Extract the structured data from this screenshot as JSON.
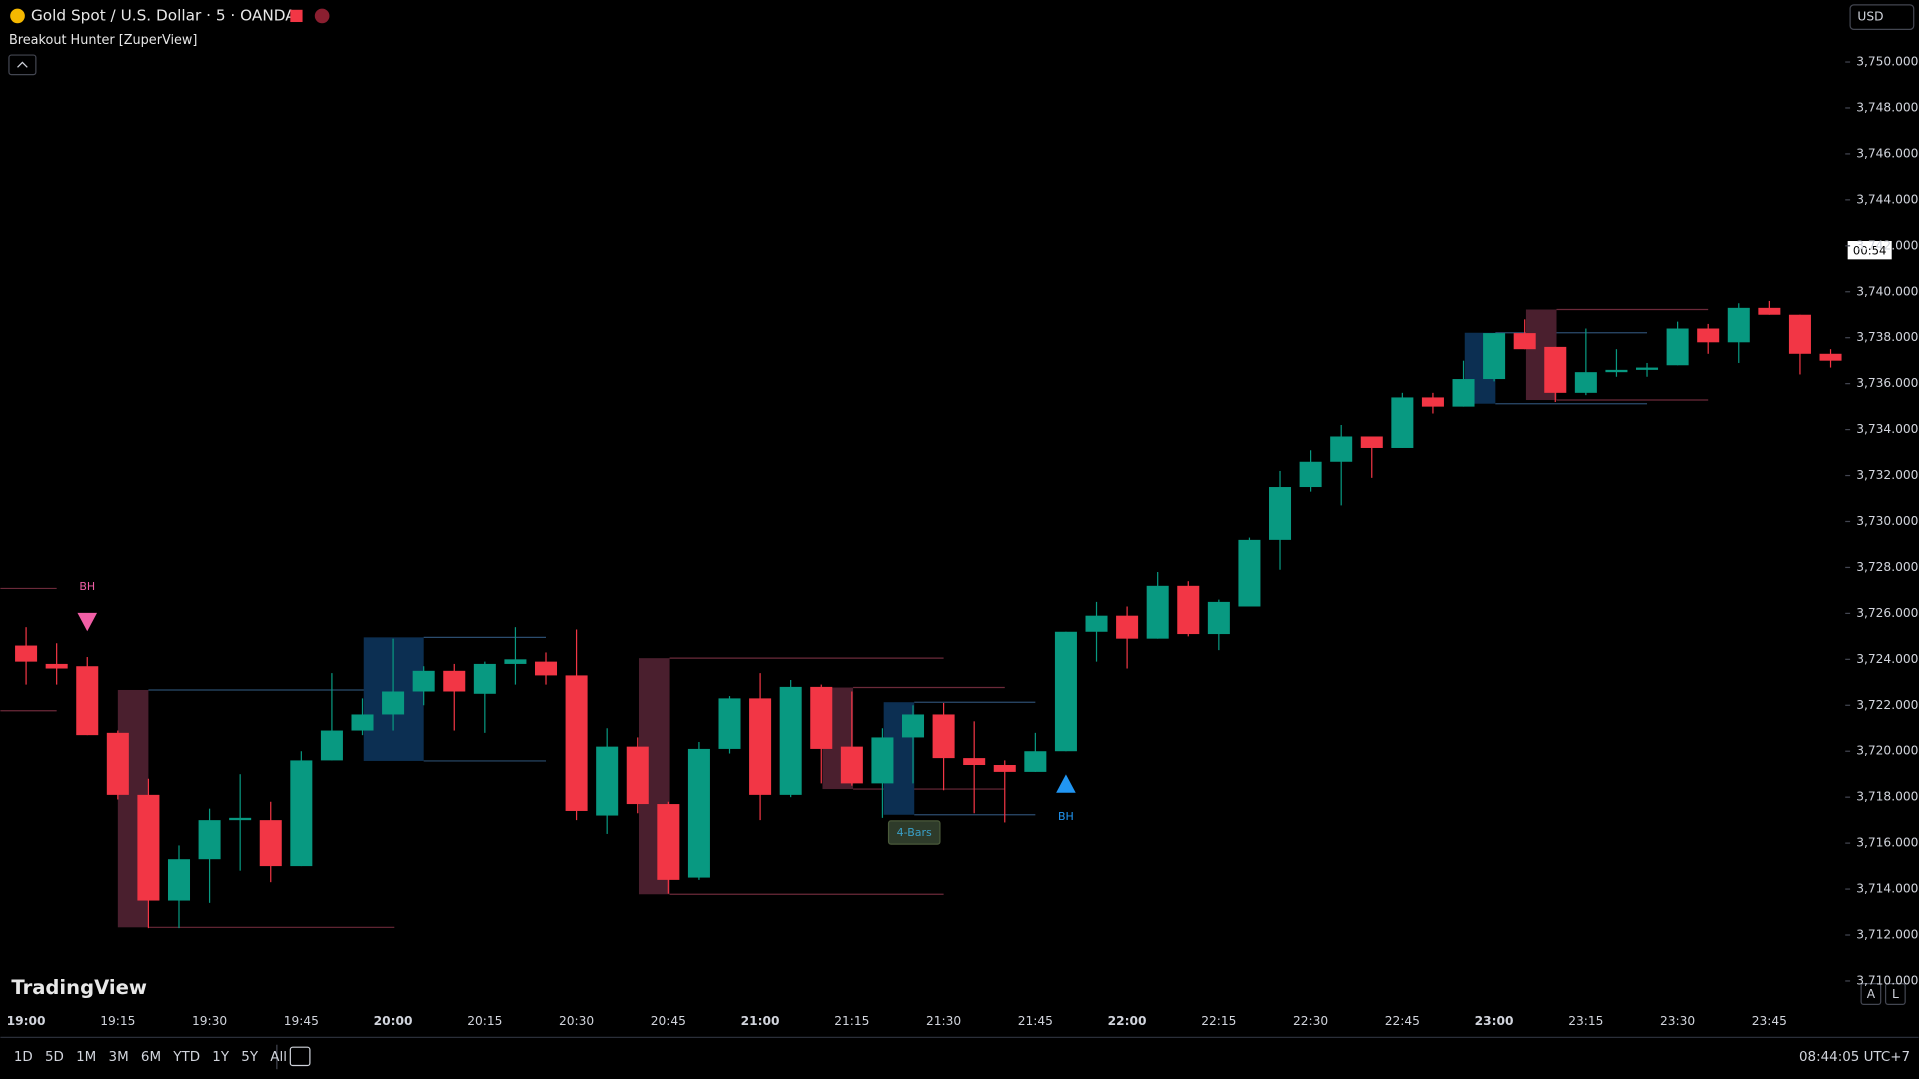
{
  "header": {
    "symbol": "Gold Spot / U.S. Dollar · 5 · OANDA",
    "indicator": "Breakout Hunter [ZuperView]",
    "currency": "USD",
    "countdown": "00:54"
  },
  "chart_data": {
    "type": "candlestick",
    "categories": [
      "19:00",
      null,
      null,
      "19:15",
      null,
      null,
      "19:30",
      null,
      null,
      "19:45",
      null,
      null,
      "20:00",
      null,
      null,
      "20:15",
      null,
      null,
      "20:30",
      null,
      null,
      "20:45",
      null,
      null,
      "21:00",
      null,
      null,
      "21:15",
      null,
      null,
      "21:30",
      null,
      null,
      "21:45",
      null,
      null,
      "22:00",
      null,
      null,
      "22:15",
      null,
      null,
      "22:30",
      null,
      null,
      "22:45",
      null,
      null,
      "23:00",
      null,
      null,
      "23:15",
      null,
      null,
      "23:30",
      null,
      null,
      "23:45",
      null,
      null
    ],
    "open": [
      3724.6,
      3723.8,
      3723.7,
      3720.8,
      3718.1,
      3713.5,
      3715.3,
      3717.0,
      3717.0,
      3715.0,
      3719.6,
      3720.9,
      3721.6,
      3722.6,
      3723.5,
      3722.5,
      3723.8,
      3723.9,
      3723.3,
      3717.2,
      3720.2,
      3717.7,
      3714.5,
      3720.1,
      3722.3,
      3718.1,
      3722.8,
      3720.2,
      3718.6,
      3720.6,
      3721.6,
      3719.7,
      3719.4,
      3719.1,
      3720.0,
      3725.2,
      3725.9,
      3724.9,
      3727.2,
      3725.1,
      3726.3,
      3729.2,
      3731.5,
      3732.6,
      3733.7,
      3733.2,
      3735.4,
      3735.0,
      3736.2,
      3738.2,
      3737.6,
      3735.6,
      3736.5,
      3736.6,
      3736.8,
      3738.4,
      3737.8,
      3739.3,
      3739.0,
      3737.3
    ],
    "high": [
      3725.4,
      3724.7,
      3724.1,
      3720.9,
      3718.8,
      3715.9,
      3717.5,
      3719.0,
      3717.8,
      3720.0,
      3723.4,
      3722.3,
      3724.9,
      3723.7,
      3723.8,
      3723.9,
      3725.4,
      3724.3,
      3725.3,
      3721.0,
      3720.6,
      3717.8,
      3720.4,
      3722.4,
      3723.4,
      3723.1,
      3722.9,
      3722.6,
      3721.0,
      3722.0,
      3722.1,
      3721.3,
      3719.6,
      3720.8,
      3725.2,
      3726.5,
      3726.3,
      3727.8,
      3727.4,
      3726.6,
      3729.3,
      3732.2,
      3733.1,
      3734.2,
      3733.7,
      3735.6,
      3735.6,
      3737.0,
      3738.2,
      3738.8,
      3737.6,
      3738.4,
      3737.5,
      3736.9,
      3738.7,
      3738.6,
      3739.5,
      3739.6,
      3739.0,
      3737.5
    ],
    "low": [
      3722.9,
      3722.9,
      3720.7,
      3717.9,
      3712.3,
      3712.3,
      3713.4,
      3714.8,
      3714.3,
      3715.0,
      3719.6,
      3720.7,
      3720.9,
      3722.0,
      3720.9,
      3720.8,
      3722.9,
      3722.9,
      3717.0,
      3716.4,
      3717.3,
      3713.8,
      3714.4,
      3719.9,
      3717.0,
      3718.0,
      3718.6,
      3718.5,
      3717.1,
      3718.6,
      3718.3,
      3717.3,
      3716.9,
      3719.1,
      3720.0,
      3723.9,
      3723.6,
      3724.9,
      3725.0,
      3724.4,
      3726.3,
      3727.9,
      3731.3,
      3730.7,
      3731.9,
      3733.2,
      3734.7,
      3735.0,
      3736.1,
      3737.5,
      3735.2,
      3735.5,
      3736.3,
      3736.3,
      3736.8,
      3737.3,
      3736.9,
      3739.0,
      3736.4,
      3736.7
    ],
    "close": [
      3723.9,
      3723.6,
      3720.7,
      3718.1,
      3713.5,
      3715.3,
      3717.0,
      3717.1,
      3715.0,
      3719.6,
      3720.9,
      3721.6,
      3722.6,
      3723.5,
      3722.6,
      3723.8,
      3724.0,
      3723.3,
      3717.4,
      3720.2,
      3717.7,
      3714.4,
      3720.1,
      3722.3,
      3718.1,
      3722.8,
      3720.1,
      3718.6,
      3720.6,
      3721.6,
      3719.7,
      3719.4,
      3719.1,
      3720.0,
      3725.2,
      3725.9,
      3724.9,
      3727.2,
      3725.1,
      3726.5,
      3729.2,
      3731.5,
      3732.6,
      3733.7,
      3733.2,
      3735.4,
      3735.0,
      3736.2,
      3738.2,
      3737.5,
      3735.6,
      3736.5,
      3736.6,
      3736.7,
      3738.4,
      3737.8,
      3739.3,
      3739.0,
      3737.3,
      3737.0
    ],
    "up_color": "#089981",
    "down_color": "#f23645",
    "ylim": [
      3709.3,
      3752.7
    ],
    "yticks": [
      {
        "value": 3710,
        "label": "3,710.000"
      },
      {
        "value": 3712,
        "label": "3,712.000"
      },
      {
        "value": 3714,
        "label": "3,714.000"
      },
      {
        "value": 3716,
        "label": "3,716.000"
      },
      {
        "value": 3718,
        "label": "3,718.000"
      },
      {
        "value": 3720,
        "label": "3,720.000"
      },
      {
        "value": 3722,
        "label": "3,722.000"
      },
      {
        "value": 3724,
        "label": "3,724.000"
      },
      {
        "value": 3726,
        "label": "3,726.000"
      },
      {
        "value": 3728,
        "label": "3,728.000"
      },
      {
        "value": 3730,
        "label": "3,730.000"
      },
      {
        "value": 3732,
        "label": "3,732.000"
      },
      {
        "value": 3734,
        "label": "3,734.000"
      },
      {
        "value": 3736,
        "label": "3,736.000"
      },
      {
        "value": 3738,
        "label": "3,738.000"
      },
      {
        "value": 3740,
        "label": "3,740.000"
      },
      {
        "value": 3742,
        "label": "3,742.000"
      },
      {
        "value": 3744,
        "label": "3,744.000"
      },
      {
        "value": 3746,
        "label": "3,746.000"
      },
      {
        "value": 3748,
        "label": "3,748.000"
      },
      {
        "value": 3750,
        "label": "3,750.000"
      }
    ],
    "annotations": [
      "BH",
      "BH",
      "4-Bars"
    ]
  },
  "footer": {
    "brand": "TradingView",
    "ranges": [
      "1D",
      "5D",
      "1M",
      "3M",
      "6M",
      "YTD",
      "1Y",
      "5Y",
      "All"
    ],
    "scale_buttons": [
      "A",
      "L"
    ],
    "clock": "08:44:05 UTC+7"
  }
}
